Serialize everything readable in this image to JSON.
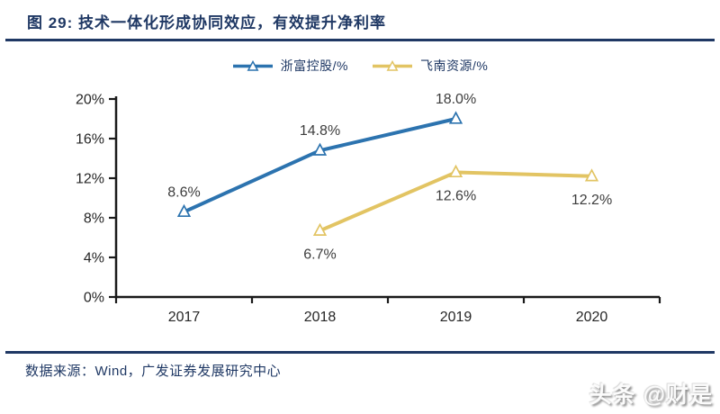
{
  "header": {
    "title": "图 29: 技术一体化形成协同效应，有效提升净利率"
  },
  "chart_data": {
    "type": "line",
    "title": "图 29: 技术一体化形成协同效应，有效提升净利率",
    "categories": [
      "2017",
      "2018",
      "2019",
      "2020"
    ],
    "series": [
      {
        "name": "浙富控股/%",
        "color": "#2C73AF",
        "x": [
          "2017",
          "2018",
          "2019"
        ],
        "values": [
          8.6,
          14.8,
          18.0
        ],
        "labels": [
          "8.6%",
          "14.8%",
          "18.0%"
        ],
        "label_position": "above"
      },
      {
        "name": "飞南资源/%",
        "color": "#E2C463",
        "x": [
          "2018",
          "2019",
          "2020"
        ],
        "values": [
          6.7,
          12.6,
          12.2
        ],
        "labels": [
          "6.7%",
          "12.6%",
          "12.2%"
        ],
        "label_position": "below"
      }
    ],
    "ylim": [
      0,
      20
    ],
    "yticks": [
      {
        "value": 0,
        "label": "0%"
      },
      {
        "value": 4,
        "label": "4%"
      },
      {
        "value": 8,
        "label": "8%"
      },
      {
        "value": 12,
        "label": "12%"
      },
      {
        "value": 16,
        "label": "16%"
      },
      {
        "value": 20,
        "label": "20%"
      }
    ],
    "xlabel": "",
    "ylabel": "",
    "marker": "hollow-triangle-up",
    "legend_position": "top-center",
    "grid": false,
    "axis_color": "#1a1a1a"
  },
  "footer": {
    "source": "数据来源：Wind，广发证券发展研究中心",
    "watermark": "头条 @财是"
  }
}
